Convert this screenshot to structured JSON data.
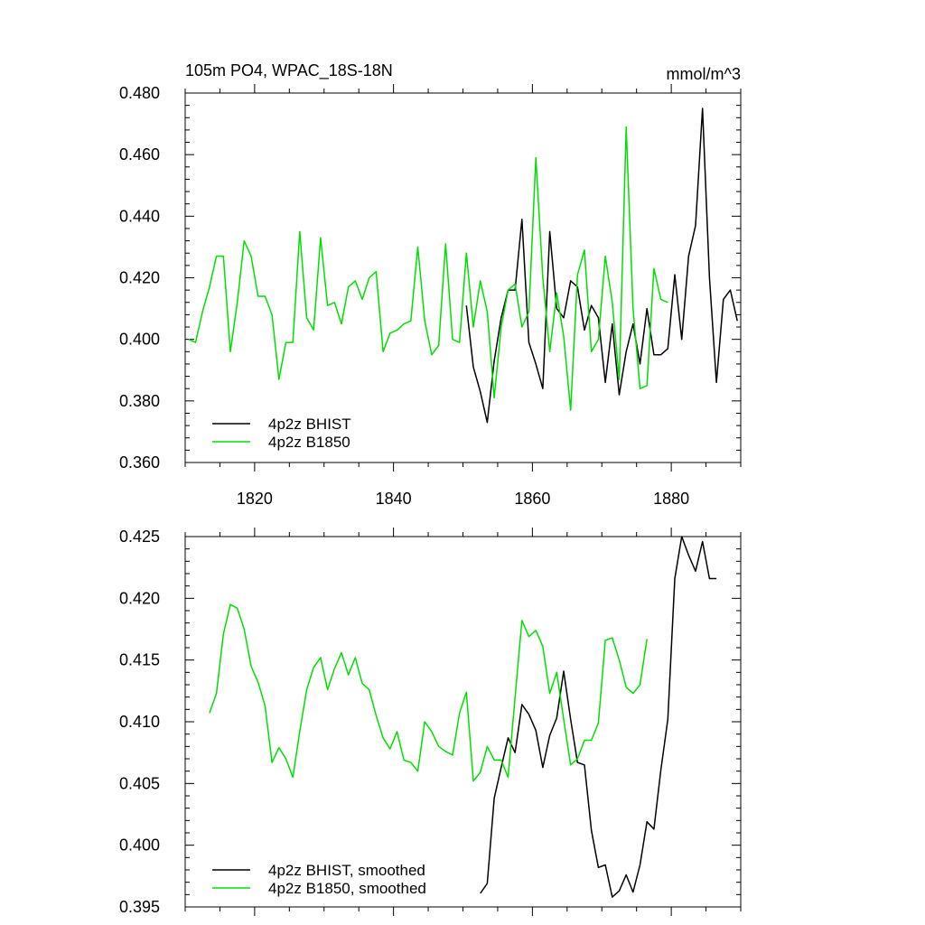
{
  "figure": {
    "title_left": "105m PO4, WPAC_18S-18N",
    "title_right": "mmol/m^3"
  },
  "chart_data": [
    {
      "type": "line",
      "xlim": [
        1810,
        1890
      ],
      "ylim": [
        0.36,
        0.48
      ],
      "xticks": [
        1820,
        1840,
        1860,
        1880
      ],
      "xtick_labels": [
        "1820",
        "1840",
        "1860",
        "1880"
      ],
      "yticks": [
        0.36,
        0.38,
        0.4,
        0.42,
        0.44,
        0.46,
        0.48
      ],
      "ytick_labels": [
        "0.360",
        "0.380",
        "0.400",
        "0.420",
        "0.440",
        "0.460",
        "0.480"
      ],
      "legend_position": "bottom-left",
      "grid": false,
      "series": [
        {
          "name": "4p2z BHIST",
          "color": "#000000",
          "x": [
            1850.5,
            1851.5,
            1852.5,
            1853.5,
            1854.5,
            1855.5,
            1856.5,
            1857.5,
            1858.5,
            1859.5,
            1860.5,
            1861.5,
            1862.5,
            1863.5,
            1864.5,
            1865.5,
            1866.5,
            1867.5,
            1868.5,
            1869.5,
            1870.5,
            1871.5,
            1872.5,
            1873.5,
            1874.5,
            1875.5,
            1876.5,
            1877.5,
            1878.5,
            1879.5,
            1880.5,
            1881.5,
            1882.5,
            1883.5,
            1884.5,
            1885.5,
            1886.5,
            1887.5,
            1888.5,
            1889.5
          ],
          "y": [
            0.411,
            0.391,
            0.383,
            0.373,
            0.393,
            0.407,
            0.416,
            0.416,
            0.439,
            0.399,
            0.392,
            0.384,
            0.435,
            0.41,
            0.407,
            0.419,
            0.417,
            0.403,
            0.411,
            0.407,
            0.386,
            0.405,
            0.382,
            0.396,
            0.405,
            0.392,
            0.41,
            0.395,
            0.395,
            0.397,
            0.421,
            0.4,
            0.427,
            0.437,
            0.475,
            0.42,
            0.386,
            0.413,
            0.416,
            0.406
          ]
        },
        {
          "name": "4p2z B1850",
          "color": "#00e000",
          "x": [
            1810.5,
            1811.5,
            1812.5,
            1813.5,
            1814.5,
            1815.5,
            1816.5,
            1817.5,
            1818.5,
            1819.5,
            1820.5,
            1821.5,
            1822.5,
            1823.5,
            1824.5,
            1825.5,
            1826.5,
            1827.5,
            1828.5,
            1829.5,
            1830.5,
            1831.5,
            1832.5,
            1833.5,
            1834.5,
            1835.5,
            1836.5,
            1837.5,
            1838.5,
            1839.5,
            1840.5,
            1841.5,
            1842.5,
            1843.5,
            1844.5,
            1845.5,
            1846.5,
            1847.5,
            1848.5,
            1849.5,
            1850.5,
            1851.5,
            1852.5,
            1853.5,
            1854.5,
            1855.5,
            1856.5,
            1857.5,
            1858.5,
            1859.5,
            1860.5,
            1861.5,
            1862.5,
            1863.5,
            1864.5,
            1865.5,
            1866.5,
            1867.5,
            1868.5,
            1869.5,
            1870.5,
            1871.5,
            1872.5,
            1873.5,
            1874.5,
            1875.5,
            1876.5,
            1877.5,
            1878.5,
            1879.5
          ],
          "y": [
            0.4,
            0.399,
            0.409,
            0.417,
            0.427,
            0.427,
            0.396,
            0.412,
            0.432,
            0.427,
            0.414,
            0.414,
            0.408,
            0.387,
            0.399,
            0.399,
            0.435,
            0.407,
            0.403,
            0.433,
            0.411,
            0.412,
            0.405,
            0.417,
            0.419,
            0.413,
            0.42,
            0.422,
            0.396,
            0.402,
            0.403,
            0.405,
            0.406,
            0.43,
            0.406,
            0.395,
            0.398,
            0.431,
            0.4,
            0.399,
            0.428,
            0.404,
            0.419,
            0.409,
            0.381,
            0.404,
            0.416,
            0.418,
            0.404,
            0.409,
            0.459,
            0.42,
            0.396,
            0.415,
            0.401,
            0.377,
            0.421,
            0.429,
            0.396,
            0.4,
            0.427,
            0.412,
            0.387,
            0.469,
            0.41,
            0.384,
            0.385,
            0.423,
            0.413,
            0.412
          ]
        }
      ]
    },
    {
      "type": "line",
      "xlim": [
        1810,
        1890
      ],
      "ylim": [
        0.395,
        0.425
      ],
      "xticks": [
        1820,
        1840,
        1860,
        1880
      ],
      "yticks": [
        0.395,
        0.4,
        0.405,
        0.41,
        0.415,
        0.42,
        0.425
      ],
      "ytick_labels": [
        "0.395",
        "0.400",
        "0.405",
        "0.410",
        "0.415",
        "0.420",
        "0.425"
      ],
      "legend_position": "bottom-left",
      "grid": false,
      "series": [
        {
          "name": "4p2z BHIST, smoothed",
          "color": "#000000",
          "x": [
            1852.5,
            1853.5,
            1854.5,
            1855.5,
            1856.5,
            1857.5,
            1858.5,
            1859.5,
            1860.5,
            1861.5,
            1862.5,
            1863.5,
            1864.5,
            1865.5,
            1866.5,
            1867.5,
            1868.5,
            1869.5,
            1870.5,
            1871.5,
            1872.5,
            1873.5,
            1874.5,
            1875.5,
            1876.5,
            1877.5,
            1878.5,
            1879.5,
            1880.5,
            1881.5,
            1882.5,
            1883.5,
            1884.5,
            1885.5,
            1886.5
          ],
          "y": [
            0.3961,
            0.3969,
            0.4038,
            0.4063,
            0.4087,
            0.4075,
            0.4114,
            0.4106,
            0.4093,
            0.4063,
            0.4089,
            0.4103,
            0.4141,
            0.4102,
            0.4067,
            0.4065,
            0.4012,
            0.3982,
            0.3984,
            0.3958,
            0.3963,
            0.3976,
            0.3962,
            0.3984,
            0.4019,
            0.4013,
            0.4061,
            0.4102,
            0.4216,
            0.425,
            0.4235,
            0.4222,
            0.4246,
            0.4216,
            0.4216
          ]
        },
        {
          "name": "4p2z B1850, smoothed",
          "color": "#00e000",
          "x": [
            1813.5,
            1814.5,
            1815.5,
            1816.5,
            1817.5,
            1818.5,
            1819.5,
            1820.5,
            1821.5,
            1822.5,
            1823.5,
            1824.5,
            1825.5,
            1826.5,
            1827.5,
            1828.5,
            1829.5,
            1830.5,
            1831.5,
            1832.5,
            1833.5,
            1834.5,
            1835.5,
            1836.5,
            1837.5,
            1838.5,
            1839.5,
            1840.5,
            1841.5,
            1842.5,
            1843.5,
            1844.5,
            1845.5,
            1846.5,
            1847.5,
            1848.5,
            1849.5,
            1850.5,
            1851.5,
            1852.5,
            1853.5,
            1854.5,
            1855.5,
            1856.5,
            1857.5,
            1858.5,
            1859.5,
            1860.5,
            1861.5,
            1862.5,
            1863.5,
            1864.5,
            1865.5,
            1866.5,
            1867.5,
            1868.5,
            1869.5,
            1870.5,
            1871.5,
            1872.5,
            1873.5,
            1874.5,
            1875.5,
            1876.5
          ],
          "y": [
            0.4107,
            0.4123,
            0.4171,
            0.4195,
            0.4192,
            0.4175,
            0.4145,
            0.4132,
            0.4113,
            0.4067,
            0.4079,
            0.407,
            0.4055,
            0.4092,
            0.4126,
            0.4144,
            0.4152,
            0.4126,
            0.4143,
            0.4156,
            0.4138,
            0.4152,
            0.4131,
            0.4126,
            0.4105,
            0.4087,
            0.4078,
            0.4092,
            0.4069,
            0.4067,
            0.406,
            0.41,
            0.4092,
            0.408,
            0.4076,
            0.4073,
            0.4107,
            0.4124,
            0.4052,
            0.4059,
            0.408,
            0.4069,
            0.4069,
            0.4055,
            0.412,
            0.4182,
            0.4169,
            0.4174,
            0.4161,
            0.4123,
            0.414,
            0.4102,
            0.4065,
            0.407,
            0.4085,
            0.4085,
            0.4099,
            0.4166,
            0.4168,
            0.415,
            0.4128,
            0.4123,
            0.413,
            0.4167
          ]
        }
      ]
    }
  ]
}
